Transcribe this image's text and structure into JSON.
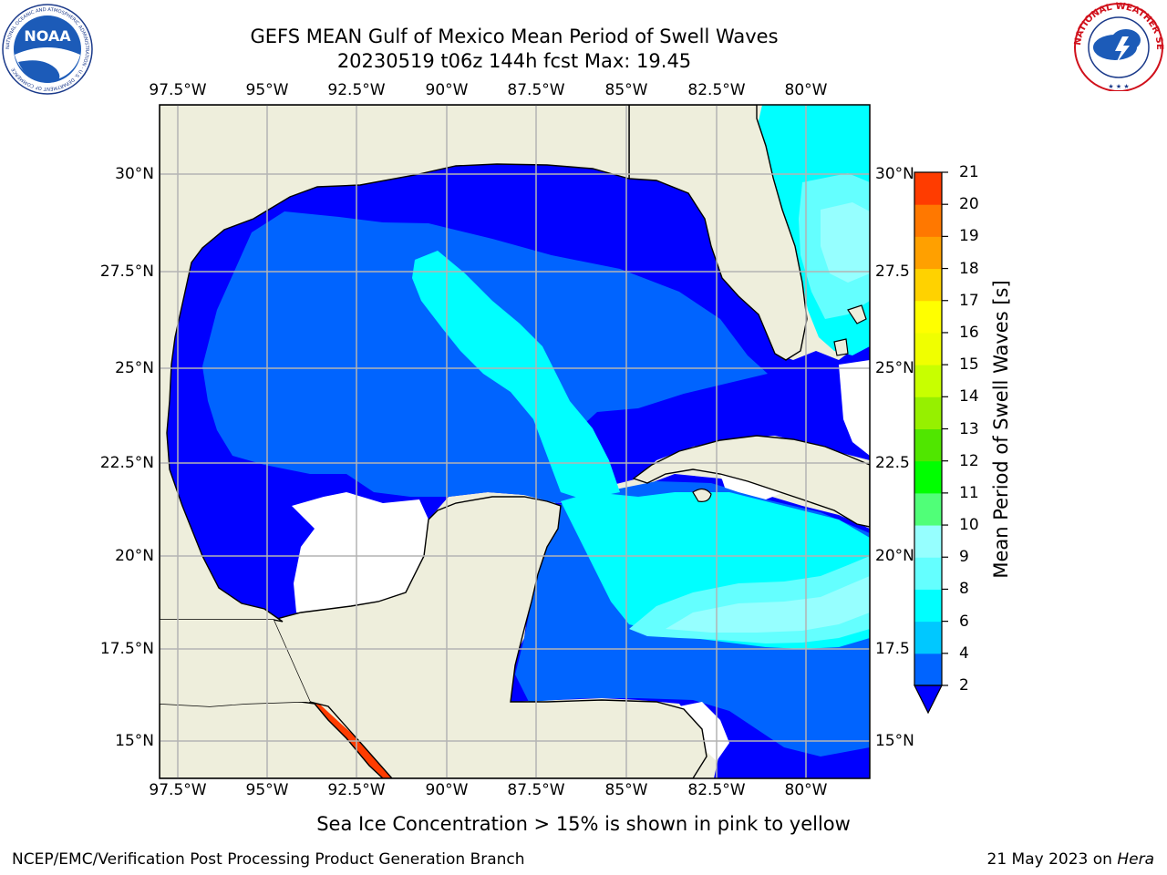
{
  "title": {
    "line1": "GEFS MEAN Gulf of Mexico Mean Period of Swell Waves",
    "line2": "20230519 t06z 144h fcst   Max: 19.45"
  },
  "map": {
    "lon_labels": [
      "97.5°W",
      "95°W",
      "92.5°W",
      "90°W",
      "87.5°W",
      "85°W",
      "82.5°W",
      "80°W"
    ],
    "lat_labels_left": [
      "30°N",
      "27.5°N",
      "25°N",
      "22.5°N",
      "20°N",
      "17.5°N",
      "15°N"
    ],
    "lat_labels_right": [
      "30°N",
      "27.5",
      "25°N",
      "22.5",
      "20°N",
      "17.5",
      "15°N"
    ],
    "colors": {
      "land": "#eeeedc",
      "ocean_nodata": "#ffffff",
      "coast": "#000000",
      "grid": "#b4b4b4"
    }
  },
  "colorbar": {
    "label": "Mean Period of Swell Waves [s]",
    "ticks": [
      "2",
      "4",
      "6",
      "8",
      "9",
      "10",
      "11",
      "12",
      "13",
      "14",
      "15",
      "16",
      "17",
      "18",
      "19",
      "20",
      "21"
    ],
    "colors": [
      "#0064ff",
      "#00c8ff",
      "#00ffff",
      "#64ffff",
      "#96ffff",
      "#50ff78",
      "#00ff00",
      "#50e600",
      "#96f000",
      "#c8ff00",
      "#f0ff00",
      "#ffff00",
      "#ffd200",
      "#ffa000",
      "#ff7800",
      "#ff3c00",
      "#ff0000"
    ],
    "extend_below_color": "#0000ff"
  },
  "swell_bands": {
    "2-4": "#0000ff",
    "4-6": "#0064ff",
    "6-8": "#00ffff",
    "8-9": "#64ffff",
    "9-10": "#96ffff",
    "17-19": "#ff7800",
    "19-20": "#ff3c00",
    "20-21": "#ffa000"
  },
  "footer": {
    "note": "Sea Ice Concentration > 15% is shown in pink to yellow",
    "credit_left": "NCEP/EMC/Verification Post Processing Product Generation Branch",
    "credit_right_date": "21 May 2023 on ",
    "credit_right_host": "Hera"
  },
  "logos": {
    "noaa_text": "NOAA",
    "noaa_ring": "NATIONAL OCEANIC AND ATMOSPHERIC ADMINISTRATION · U.S. DEPARTMENT OF COMMERCE",
    "nws_ring": "NATIONAL WEATHER SERVICE"
  }
}
